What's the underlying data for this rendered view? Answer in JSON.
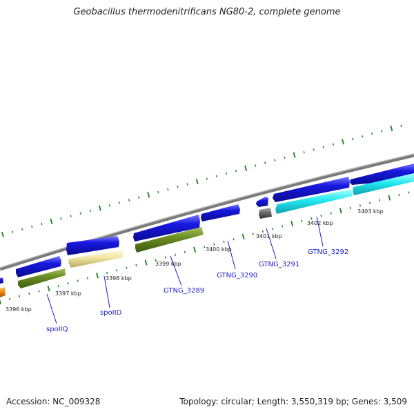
{
  "title": "Geobacillus thermodenitrificans NG80-2, complete genome",
  "footer": {
    "accession": "Accession: NC_009328",
    "summary": "Topology: circular; Length: 3,550,319 bp; Genes: 3,509"
  },
  "colors": {
    "backbone": "#8a8a8a",
    "tick": "#2a8a2a",
    "blue_cds": "#1818e0",
    "olive_cds": "#6b8e23",
    "pale_yellow_cds": "#f0e6a0",
    "cyan_cds": "#22e8f0",
    "gray_cds": "#6a6a6a",
    "orange_cds": "#f08c10",
    "label": "#1a1acc"
  },
  "kbp_labels": [
    "3396 kbp",
    "3397 kbp",
    "3398 kbp",
    "3399 kbp",
    "3400 kbp",
    "3401 kbp",
    "3402 kbp",
    "3403 kbp"
  ],
  "gene_labels": [
    "spoIIQ",
    "spoIID",
    "GTNG_3289",
    "GTNG_3290",
    "GTNG_3291",
    "GTNG_3292"
  ]
}
